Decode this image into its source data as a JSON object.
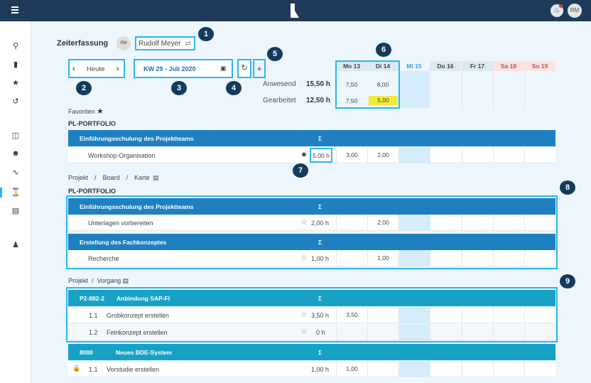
{
  "topbar": {
    "user_initials": "RM",
    "menu_icon": "hamburger-icon",
    "notification_icon": "bell-icon"
  },
  "sidebar": {
    "items": [
      "search-icon",
      "document-add-icon",
      "star-icon",
      "history-icon",
      "board-icon",
      "team-icon",
      "activity-icon",
      "hourglass-icon",
      "archive-icon",
      "user-icon"
    ]
  },
  "header": {
    "title": "Zeiterfassung",
    "avatar": "RM",
    "user": "Rudolf Meyer"
  },
  "nav": {
    "today": "Heute",
    "week": "KW 29 - Juli 2020"
  },
  "summary": {
    "present_label": "Anwesend",
    "present_total": "15,50 h",
    "worked_label": "Gearbeitet",
    "worked_total": "12,50 h"
  },
  "days": [
    {
      "label": "Mo 13",
      "present": "7,50",
      "worked": "7,50"
    },
    {
      "label": "Di 14",
      "present": "8,00",
      "worked": "5,00"
    },
    {
      "label": "Mi 15"
    },
    {
      "label": "Do 16"
    },
    {
      "label": "Fr 17"
    },
    {
      "label": "Sa 18"
    },
    {
      "label": "So 19"
    }
  ],
  "favorites": {
    "label": "Favoriten",
    "portfolio": "PL-PORTFOLIO",
    "group": "Einführungsschulung des Projektteams",
    "sigma": "Σ",
    "row": {
      "name": "Workshop-Organisation",
      "total": "5,00 h",
      "mo": "3,00",
      "di": "2,00"
    }
  },
  "board": {
    "crumb": [
      "Projekt",
      "/",
      "Board",
      "/",
      "Karte"
    ],
    "portfolio": "PL-PORTFOLIO",
    "groups": [
      {
        "title": "Einführungsschulung des Projektteams",
        "row": {
          "name": "Unterlagen vorbereiten",
          "total": "2,00 h",
          "di": "2,00"
        }
      },
      {
        "title": "Erstellung des Fachkonzeptes",
        "row": {
          "name": "Recherche",
          "total": "1,00 h",
          "di": "1,00"
        }
      }
    ]
  },
  "process": {
    "crumb": [
      "Projekt",
      "/",
      "Vorgang"
    ],
    "groups": [
      {
        "id": "P2-882-2",
        "title": "Anbindung SAP-FI",
        "rows": [
          {
            "num": "1.1",
            "name": "Grobkonzept erstellen",
            "total": "3,50 h",
            "mo": "3,50"
          },
          {
            "num": "1.2",
            "name": "Feinkonzept erstellen",
            "total": "0 h"
          }
        ]
      },
      {
        "id": "8000",
        "title": "Neues BDE-System",
        "rows": [
          {
            "num": "1.1",
            "name": "Vorstudie erstellen",
            "total": "1,00 h",
            "mo": "1,00"
          }
        ]
      }
    ]
  },
  "callouts": [
    "1",
    "2",
    "3",
    "4",
    "5",
    "6",
    "7",
    "8",
    "9"
  ],
  "colors": {
    "topbar": "#1f3a5a",
    "header_blue": "#1e80c1",
    "header_teal": "#17a2c5",
    "highlight": "#29b6f6",
    "today": "#d4ecfb",
    "weekend": "#fbe3e1",
    "worked_flag": "#f2ea3a"
  }
}
